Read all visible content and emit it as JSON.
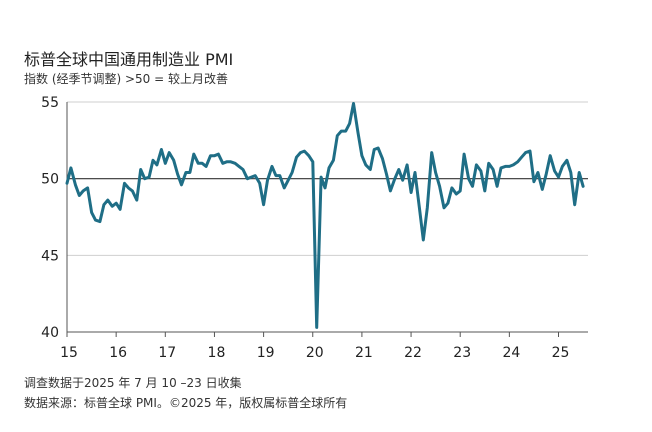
{
  "chart_data": {
    "type": "line",
    "title": "标普全球中国通用制造业 PMI",
    "subtitle": "指数 (经季节调整) >50 = 较上月改善",
    "ylim": [
      40,
      55
    ],
    "yticks": [
      40,
      45,
      50,
      55
    ],
    "xlim": [
      2015.0,
      2025.6
    ],
    "xticks": [
      {
        "value": 2015,
        "label": "15"
      },
      {
        "value": 2016,
        "label": "16"
      },
      {
        "value": 2017,
        "label": "17"
      },
      {
        "value": 2018,
        "label": "18"
      },
      {
        "value": 2019,
        "label": "19"
      },
      {
        "value": 2020,
        "label": "20"
      },
      {
        "value": 2021,
        "label": "21"
      },
      {
        "value": 2022,
        "label": "22"
      },
      {
        "value": 2023,
        "label": "23"
      },
      {
        "value": 2024,
        "label": "24"
      },
      {
        "value": 2025,
        "label": "25"
      }
    ],
    "reference_line": 50,
    "grid": "horizontal",
    "series": [
      {
        "color": "#1f6e86",
        "points": [
          [
            2015.0,
            49.7
          ],
          [
            2015.08,
            50.7
          ],
          [
            2015.17,
            49.6
          ],
          [
            2015.25,
            48.9
          ],
          [
            2015.33,
            49.2
          ],
          [
            2015.42,
            49.4
          ],
          [
            2015.5,
            47.8
          ],
          [
            2015.58,
            47.3
          ],
          [
            2015.67,
            47.2
          ],
          [
            2015.75,
            48.3
          ],
          [
            2015.83,
            48.6
          ],
          [
            2015.92,
            48.2
          ],
          [
            2016.0,
            48.4
          ],
          [
            2016.08,
            48.0
          ],
          [
            2016.17,
            49.7
          ],
          [
            2016.25,
            49.4
          ],
          [
            2016.33,
            49.2
          ],
          [
            2016.42,
            48.6
          ],
          [
            2016.5,
            50.6
          ],
          [
            2016.58,
            50.0
          ],
          [
            2016.67,
            50.1
          ],
          [
            2016.75,
            51.2
          ],
          [
            2016.83,
            50.9
          ],
          [
            2016.92,
            51.9
          ],
          [
            2017.0,
            51.0
          ],
          [
            2017.08,
            51.7
          ],
          [
            2017.17,
            51.2
          ],
          [
            2017.25,
            50.3
          ],
          [
            2017.33,
            49.6
          ],
          [
            2017.42,
            50.4
          ],
          [
            2017.5,
            50.4
          ],
          [
            2017.58,
            51.6
          ],
          [
            2017.67,
            51.0
          ],
          [
            2017.75,
            51.0
          ],
          [
            2017.83,
            50.8
          ],
          [
            2017.92,
            51.5
          ],
          [
            2018.0,
            51.5
          ],
          [
            2018.08,
            51.6
          ],
          [
            2018.17,
            51.0
          ],
          [
            2018.25,
            51.1
          ],
          [
            2018.33,
            51.1
          ],
          [
            2018.42,
            51.0
          ],
          [
            2018.5,
            50.8
          ],
          [
            2018.58,
            50.6
          ],
          [
            2018.67,
            50.0
          ],
          [
            2018.75,
            50.1
          ],
          [
            2018.83,
            50.2
          ],
          [
            2018.92,
            49.7
          ],
          [
            2019.0,
            48.3
          ],
          [
            2019.08,
            49.9
          ],
          [
            2019.17,
            50.8
          ],
          [
            2019.25,
            50.2
          ],
          [
            2019.33,
            50.2
          ],
          [
            2019.42,
            49.4
          ],
          [
            2019.5,
            49.9
          ],
          [
            2019.58,
            50.4
          ],
          [
            2019.67,
            51.4
          ],
          [
            2019.75,
            51.7
          ],
          [
            2019.83,
            51.8
          ],
          [
            2019.92,
            51.5
          ],
          [
            2020.0,
            51.1
          ],
          [
            2020.08,
            40.3
          ],
          [
            2020.17,
            50.1
          ],
          [
            2020.25,
            49.4
          ],
          [
            2020.33,
            50.7
          ],
          [
            2020.42,
            51.2
          ],
          [
            2020.5,
            52.8
          ],
          [
            2020.58,
            53.1
          ],
          [
            2020.67,
            53.1
          ],
          [
            2020.75,
            53.6
          ],
          [
            2020.83,
            54.9
          ],
          [
            2020.92,
            53.0
          ],
          [
            2021.0,
            51.5
          ],
          [
            2021.08,
            50.9
          ],
          [
            2021.17,
            50.6
          ],
          [
            2021.25,
            51.9
          ],
          [
            2021.33,
            52.0
          ],
          [
            2021.42,
            51.3
          ],
          [
            2021.5,
            50.3
          ],
          [
            2021.58,
            49.2
          ],
          [
            2021.67,
            50.0
          ],
          [
            2021.75,
            50.6
          ],
          [
            2021.83,
            49.9
          ],
          [
            2021.92,
            50.9
          ],
          [
            2022.0,
            49.1
          ],
          [
            2022.08,
            50.4
          ],
          [
            2022.17,
            48.1
          ],
          [
            2022.25,
            46.0
          ],
          [
            2022.33,
            48.1
          ],
          [
            2022.42,
            51.7
          ],
          [
            2022.5,
            50.4
          ],
          [
            2022.58,
            49.5
          ],
          [
            2022.67,
            48.1
          ],
          [
            2022.75,
            48.4
          ],
          [
            2022.83,
            49.4
          ],
          [
            2022.92,
            49.0
          ],
          [
            2023.0,
            49.2
          ],
          [
            2023.08,
            51.6
          ],
          [
            2023.17,
            50.0
          ],
          [
            2023.25,
            49.5
          ],
          [
            2023.33,
            50.9
          ],
          [
            2023.42,
            50.5
          ],
          [
            2023.5,
            49.2
          ],
          [
            2023.58,
            51.0
          ],
          [
            2023.67,
            50.6
          ],
          [
            2023.75,
            49.5
          ],
          [
            2023.83,
            50.7
          ],
          [
            2023.92,
            50.8
          ],
          [
            2024.0,
            50.8
          ],
          [
            2024.08,
            50.9
          ],
          [
            2024.17,
            51.1
          ],
          [
            2024.25,
            51.4
          ],
          [
            2024.33,
            51.7
          ],
          [
            2024.42,
            51.8
          ],
          [
            2024.5,
            49.8
          ],
          [
            2024.58,
            50.4
          ],
          [
            2024.67,
            49.3
          ],
          [
            2024.75,
            50.3
          ],
          [
            2024.83,
            51.5
          ],
          [
            2024.92,
            50.5
          ],
          [
            2025.0,
            50.1
          ],
          [
            2025.08,
            50.8
          ],
          [
            2025.17,
            51.2
          ],
          [
            2025.25,
            50.4
          ],
          [
            2025.33,
            48.3
          ],
          [
            2025.42,
            50.4
          ],
          [
            2025.5,
            49.5
          ]
        ]
      }
    ]
  },
  "footnotes": {
    "line1": "调查数据于2025 年 7 月 10 –23 日收集",
    "line2": "数据来源：标普全球 PMI。©2025 年，版权属标普全球所有"
  }
}
